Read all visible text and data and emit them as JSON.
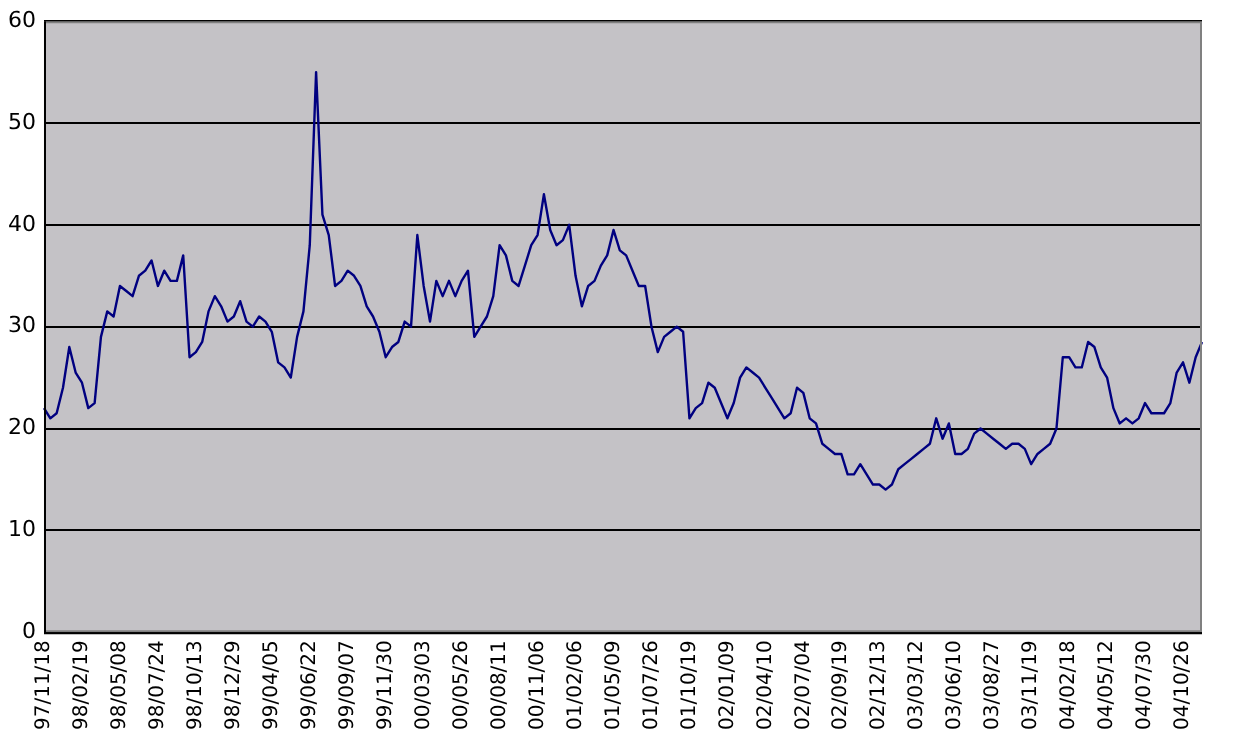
{
  "chart_data": {
    "type": "line",
    "categories": [
      "97/11/18",
      null,
      null,
      null,
      null,
      null,
      "98/02/19",
      null,
      null,
      null,
      null,
      null,
      "98/05/08",
      null,
      null,
      null,
      null,
      null,
      "98/07/24",
      null,
      null,
      null,
      null,
      null,
      "98/10/13",
      null,
      null,
      null,
      null,
      null,
      "98/12/29",
      null,
      null,
      null,
      null,
      null,
      "99/04/05",
      null,
      null,
      null,
      null,
      null,
      "99/06/22",
      null,
      null,
      null,
      null,
      null,
      "99/09/07",
      null,
      null,
      null,
      null,
      null,
      "99/11/30",
      null,
      null,
      null,
      null,
      null,
      "00/03/03",
      null,
      null,
      null,
      null,
      null,
      "00/05/26",
      null,
      null,
      null,
      null,
      null,
      "00/08/11",
      null,
      null,
      null,
      null,
      null,
      "00/11/06",
      null,
      null,
      null,
      null,
      null,
      "01/02/06",
      null,
      null,
      null,
      null,
      null,
      "01/05/09",
      null,
      null,
      null,
      null,
      null,
      "01/07/26",
      null,
      null,
      null,
      null,
      null,
      "01/10/19",
      null,
      null,
      null,
      null,
      null,
      "02/01/09",
      null,
      null,
      null,
      null,
      null,
      "02/04/10",
      null,
      null,
      null,
      null,
      null,
      "02/07/04",
      null,
      null,
      null,
      null,
      null,
      "02/09/19",
      null,
      null,
      null,
      null,
      null,
      "02/12/13",
      null,
      null,
      null,
      null,
      null,
      "03/03/12",
      null,
      null,
      null,
      null,
      null,
      "03/06/10",
      null,
      null,
      null,
      null,
      null,
      "03/08/27",
      null,
      null,
      null,
      null,
      null,
      "03/11/19",
      null,
      null,
      null,
      null,
      null,
      "04/02/18",
      null,
      null,
      null,
      null,
      null,
      "04/05/12",
      null,
      null,
      null,
      null,
      null,
      "04/07/30",
      null,
      null,
      null,
      null,
      null,
      "04/10/26",
      null,
      null,
      null
    ],
    "series": [
      {
        "color": "#000080",
        "values": [
          22,
          21,
          21.5,
          24,
          28,
          25.5,
          24.5,
          22,
          22.5,
          29,
          31.5,
          31,
          34,
          33.5,
          33,
          35,
          35.5,
          36.5,
          34,
          35.5,
          34.5,
          34.5,
          37,
          27,
          27.5,
          28.5,
          31.5,
          33,
          32,
          30.5,
          31,
          32.5,
          30.5,
          30,
          31,
          30.5,
          29.5,
          26.5,
          26,
          25,
          29,
          31.5,
          38,
          55,
          41,
          39,
          34,
          34.5,
          35.5,
          35,
          34,
          32,
          31,
          29.5,
          27,
          28,
          28.5,
          30.5,
          30,
          39,
          34,
          30.5,
          34.5,
          33,
          34.5,
          33,
          34.5,
          35.5,
          29,
          30,
          31,
          33,
          38,
          37,
          34.5,
          34,
          36,
          38,
          39,
          43,
          39.5,
          38,
          38.5,
          40,
          35,
          32,
          34,
          34.5,
          36,
          37,
          39.5,
          37.5,
          37,
          35.5,
          34,
          34,
          30,
          27.5,
          29,
          29.5,
          30,
          29.5,
          21,
          22,
          22.5,
          24.5,
          24,
          22.5,
          21,
          22.5,
          25,
          26,
          25.5,
          25,
          24,
          23,
          22,
          21,
          21.5,
          24,
          23.5,
          21,
          20.5,
          18.5,
          18,
          17.5,
          17.5,
          15.5,
          15.5,
          16.5,
          15.5,
          14.5,
          14.5,
          14,
          14.5,
          16,
          16.5,
          17,
          17.5,
          18,
          18.5,
          21,
          19,
          20.5,
          17.5,
          17.5,
          18,
          19.5,
          20,
          19.5,
          19,
          18.5,
          18,
          18.5,
          18.5,
          18,
          16.5,
          17.5,
          18,
          18.5,
          20,
          27,
          27,
          26,
          26,
          28.5,
          28,
          26,
          25,
          22,
          20.5,
          21,
          20.5,
          21,
          22.5,
          21.5,
          21.5,
          21.5,
          22.5,
          25.5,
          26.5,
          24.5,
          27,
          28.5
        ]
      }
    ],
    "ylim": [
      0,
      60
    ],
    "yticks": [
      0,
      10,
      20,
      30,
      40,
      50,
      60
    ],
    "grid": "y",
    "legend": false,
    "marker": "none",
    "line_style": "solid"
  }
}
